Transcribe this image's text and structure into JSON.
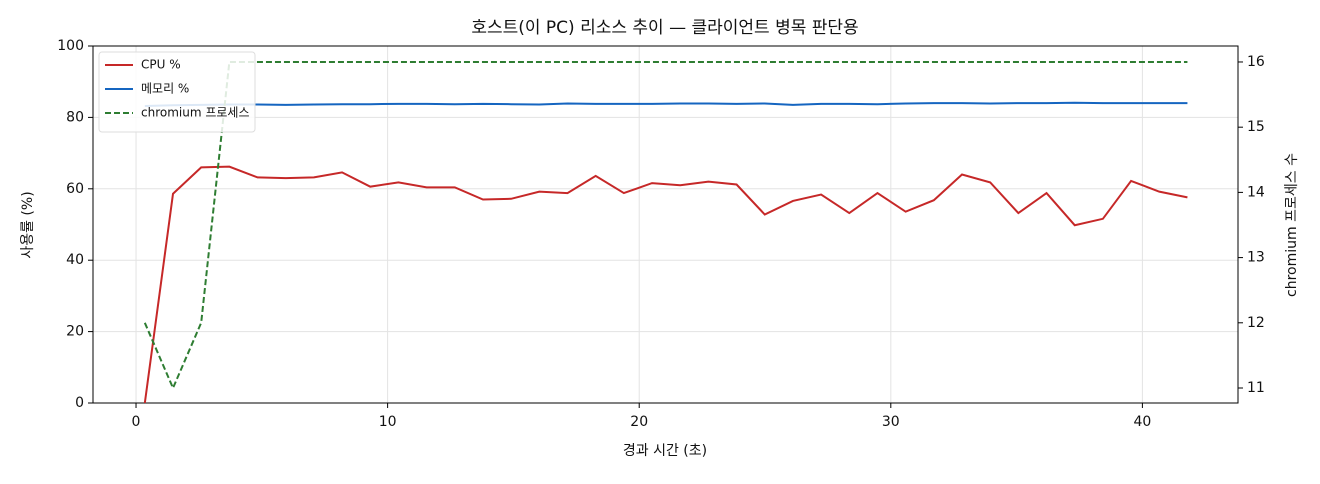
{
  "chart_data": {
    "type": "line",
    "title": "호스트(이 PC) 리소스 추이 — 클라이언트 병목 판단용",
    "x_label": "경과 시간 (초)",
    "y_label": "사용률 (%)",
    "y2_label": "chromium 프로세스 수",
    "x": [
      0.35,
      1.47,
      2.59,
      3.71,
      4.83,
      5.95,
      7.07,
      8.19,
      9.31,
      10.43,
      11.55,
      12.67,
      13.79,
      14.91,
      16.03,
      17.15,
      18.27,
      19.39,
      20.51,
      21.63,
      22.75,
      23.87,
      24.99,
      26.11,
      27.23,
      28.35,
      29.47,
      30.59,
      31.71,
      32.83,
      33.95,
      35.07,
      36.19,
      37.31,
      38.43,
      39.55,
      40.67,
      41.79
    ],
    "series": [
      {
        "name": "CPU %",
        "color": "#c62828",
        "axis": "y",
        "dash": false,
        "values": [
          0,
          58.6,
          66,
          66.2,
          63.2,
          63,
          63.2,
          64.6,
          60.6,
          61.8,
          60.4,
          60.4,
          57,
          57.2,
          59.2,
          58.8,
          63.6,
          58.8,
          61.6,
          61,
          62,
          61.2,
          52.8,
          56.6,
          58.4,
          53.2,
          58.8,
          53.6,
          56.8,
          64,
          61.8,
          53.2,
          58.8,
          49.8,
          51.6,
          62.2,
          59.2,
          57.6
        ]
      },
      {
        "name": "메모리 %",
        "color": "#1565c0",
        "axis": "y",
        "dash": false,
        "values": [
          83.2,
          83.4,
          83.5,
          83.6,
          83.6,
          83.5,
          83.6,
          83.7,
          83.7,
          83.8,
          83.8,
          83.7,
          83.8,
          83.7,
          83.6,
          83.9,
          83.8,
          83.8,
          83.8,
          83.9,
          83.9,
          83.8,
          83.9,
          83.5,
          83.8,
          83.8,
          83.7,
          83.9,
          84,
          84,
          83.9,
          84,
          84,
          84.1,
          84,
          84,
          84,
          84
        ]
      },
      {
        "name": "chromium 프로세스",
        "color": "#2e7d32",
        "axis": "y2",
        "dash": true,
        "values": [
          12,
          11,
          12,
          16,
          16,
          16,
          16,
          16,
          16,
          16,
          16,
          16,
          16,
          16,
          16,
          16,
          16,
          16,
          16,
          16,
          16,
          16,
          16,
          16,
          16,
          16,
          16,
          16,
          16,
          16,
          16,
          16,
          16,
          16,
          16,
          16,
          16,
          16
        ]
      }
    ],
    "xlim": [
      -1.71,
      43.8
    ],
    "xticks": [
      0,
      10,
      20,
      30,
      40
    ],
    "ylim": [
      0,
      100
    ],
    "yticks": [
      0,
      20,
      40,
      60,
      80,
      100
    ],
    "y2lim": [
      10.77,
      16.245
    ],
    "y2ticks": [
      11,
      12,
      13,
      14,
      15,
      16
    ],
    "grid": true,
    "legend": "upper-left"
  }
}
